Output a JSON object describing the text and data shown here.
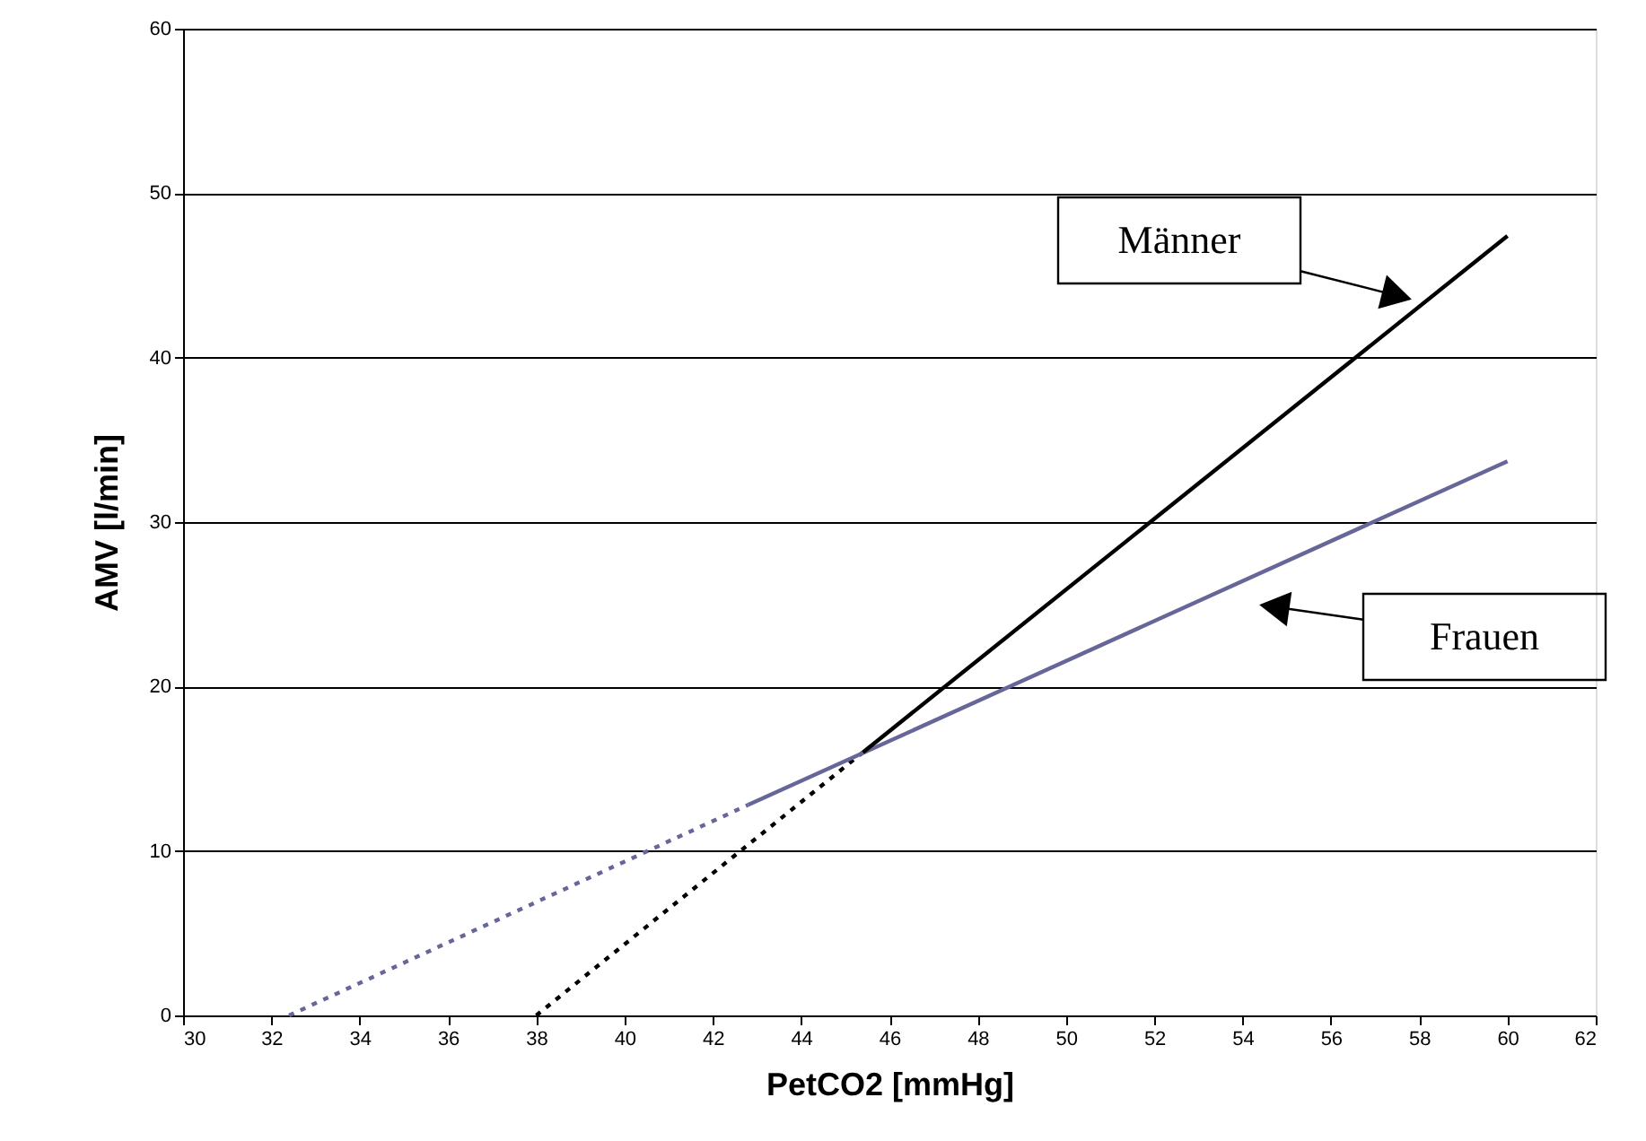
{
  "chart_data": {
    "type": "line",
    "xlabel": "PetCO2 [mmHg]",
    "ylabel": "AMV [l/min]",
    "series": [
      {
        "color": "#666699",
        "line_style": "dotted",
        "x": [
          32.4,
          42.8
        ],
        "values": [
          0,
          12.8
        ]
      },
      {
        "color": "#000000",
        "line_style": "dotted",
        "x": [
          38,
          45.4
        ],
        "values": [
          0,
          16
        ]
      },
      {
        "color": "#666699",
        "line_style": "solid",
        "x": [
          42.8,
          60
        ],
        "values": [
          12.8,
          33.7
        ]
      },
      {
        "color": "#000000",
        "line_style": "solid",
        "x": [
          45.4,
          60
        ],
        "values": [
          16,
          47.4
        ]
      }
    ],
    "annotations": [
      "Männer",
      "Frauen"
    ],
    "xlim": [
      30,
      62
    ],
    "xticks": [
      30,
      32,
      34,
      36,
      38,
      40,
      42,
      44,
      46,
      48,
      50,
      52,
      54,
      56,
      58,
      60,
      62
    ],
    "ylim": [
      0,
      60
    ],
    "yticks": [
      0,
      10,
      20,
      30,
      40,
      50,
      60
    ],
    "grid": "y",
    "marker": "none"
  }
}
